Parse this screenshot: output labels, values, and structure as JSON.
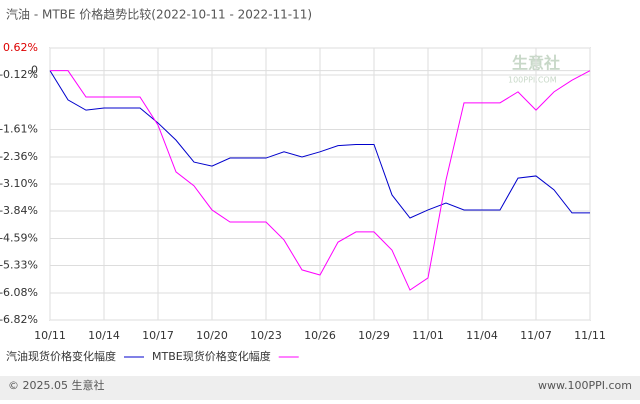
{
  "chart_data": {
    "type": "line",
    "title": "汽油 - MTBE 价格趋势比较(2022-10-11 - 2022-11-11)",
    "categories": [
      "10/11",
      null,
      null,
      "10/14",
      null,
      null,
      "10/17",
      null,
      null,
      "10/20",
      null,
      null,
      "10/23",
      null,
      null,
      "10/26",
      null,
      null,
      "10/29",
      null,
      null,
      "11/01",
      null,
      null,
      "11/04",
      null,
      null,
      "11/07",
      null,
      null,
      "11/11"
    ],
    "ylim": [
      -6.82,
      0.62
    ],
    "yticks": [
      {
        "value": 0.62,
        "label": "0.62%"
      },
      {
        "value": -0.12,
        "label": "-0.12%"
      },
      0,
      {
        "value": -1.61,
        "label": "-1.61%"
      },
      {
        "value": -2.36,
        "label": "-2.36%"
      },
      {
        "value": -3.1,
        "label": "-3.10%"
      },
      {
        "value": -3.84,
        "label": "-3.84%"
      },
      {
        "value": -4.59,
        "label": "-4.59%"
      },
      {
        "value": -5.33,
        "label": "-5.33%"
      },
      {
        "value": -6.08,
        "label": "-6.08%"
      },
      {
        "value": -6.82,
        "label": "-6.82%"
      }
    ],
    "grid": true,
    "series": [
      {
        "name": "汽油现货价格变化幅度",
        "color": "#0000cc",
        "values": [
          0,
          -0.8,
          -1.08,
          -1.02,
          -1.02,
          -1.02,
          -1.43,
          -1.9,
          -2.5,
          -2.61,
          -2.39,
          -2.39,
          -2.39,
          -2.22,
          -2.36,
          -2.22,
          -2.05,
          -2.02,
          -2.02,
          -3.4,
          -4.03,
          -3.81,
          -3.62,
          -3.81,
          -3.81,
          -3.81,
          -2.94,
          -2.88,
          -3.26,
          -3.89,
          -3.89
        ]
      },
      {
        "name": "MTBE现货价格变化幅度",
        "color": "#ff00ff",
        "values": [
          0,
          0,
          -0.72,
          -0.72,
          -0.72,
          -0.72,
          -1.49,
          -2.77,
          -3.15,
          -3.81,
          -4.14,
          -4.14,
          -4.14,
          -4.63,
          -5.45,
          -5.59,
          -4.69,
          -4.41,
          -4.41,
          -4.91,
          -6.0,
          -5.67,
          -2.99,
          -0.88,
          -0.88,
          -0.88,
          -0.58,
          -1.08,
          -0.58,
          -0.26,
          0
        ]
      }
    ],
    "watermark": "生意社",
    "watermark_url": "100PPI.COM",
    "footer_left": "© 2025.05 生意社",
    "footer_right": "www.100PPI.com"
  }
}
